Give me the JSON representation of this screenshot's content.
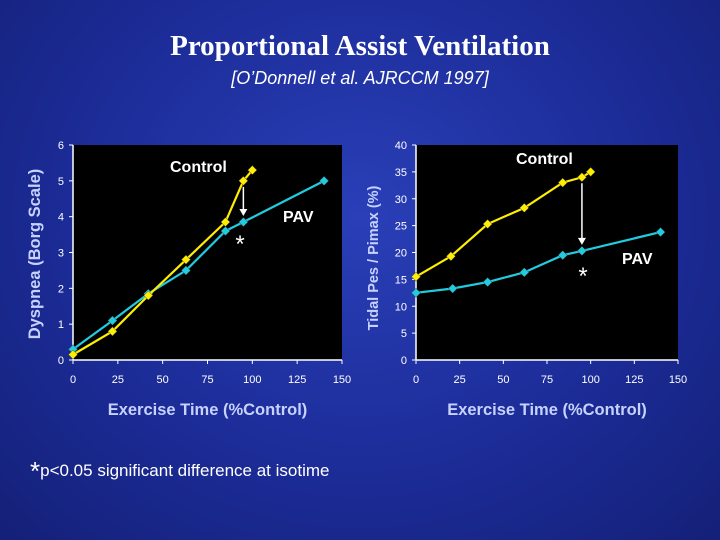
{
  "slide": {
    "title": "Proportional Assist Ventilation",
    "subtitle": "[O’Donnell et al.  AJRCCM 1997]",
    "footnote_symbol": "*",
    "footnote_text": "p<0.05 significant difference at isotime"
  },
  "colors": {
    "control": "#ffee00",
    "pav": "#22cce0",
    "plot_bg": "#000000",
    "text": "#ffffff"
  },
  "chart_data": [
    {
      "type": "line",
      "xlabel": "Exercise Time (%Control)",
      "ylabel": "Dyspnea (Borg Scale)",
      "xlim": [
        0,
        150
      ],
      "ylim": [
        0,
        6
      ],
      "xticks": [
        0,
        25,
        50,
        75,
        100,
        125,
        150
      ],
      "yticks": [
        0,
        1,
        2,
        3,
        4,
        5,
        6
      ],
      "grid": false,
      "series": [
        {
          "name": "Control",
          "color_key": "control",
          "points": [
            [
              0,
              0.15
            ],
            [
              22,
              0.8
            ],
            [
              42,
              1.8
            ],
            [
              63,
              2.8
            ],
            [
              85,
              3.85
            ],
            [
              95,
              5.0
            ],
            [
              100,
              5.3
            ]
          ]
        },
        {
          "name": "PAV",
          "color_key": "pav",
          "points": [
            [
              0,
              0.3
            ],
            [
              22,
              1.1
            ],
            [
              42,
              1.85
            ],
            [
              63,
              2.5
            ],
            [
              85,
              3.6
            ],
            [
              95,
              3.85
            ],
            [
              140,
              5.0
            ]
          ]
        }
      ],
      "annotations": {
        "control_label": "Control",
        "pav_label": "PAV",
        "significance": "*",
        "arrow": {
          "x": 95,
          "from": 5.0,
          "to": 3.85
        }
      }
    },
    {
      "type": "line",
      "xlabel": "Exercise Time (%Control)",
      "ylabel": "Tidal Pes / Pimax (%)",
      "xlim": [
        0,
        150
      ],
      "ylim": [
        0,
        40
      ],
      "xticks": [
        0,
        25,
        50,
        75,
        100,
        125,
        150
      ],
      "yticks": [
        0,
        5,
        10,
        15,
        20,
        25,
        30,
        35,
        40
      ],
      "grid": false,
      "series": [
        {
          "name": "Control",
          "color_key": "control",
          "points": [
            [
              0,
              15.5
            ],
            [
              20,
              19.3
            ],
            [
              41,
              25.3
            ],
            [
              62,
              28.3
            ],
            [
              84,
              33.0
            ],
            [
              95,
              34.0
            ],
            [
              100,
              35.0
            ]
          ]
        },
        {
          "name": "PAV",
          "color_key": "pav",
          "points": [
            [
              0,
              12.5
            ],
            [
              21,
              13.3
            ],
            [
              41,
              14.5
            ],
            [
              62,
              16.3
            ],
            [
              84,
              19.5
            ],
            [
              95,
              20.3
            ],
            [
              140,
              23.8
            ]
          ]
        }
      ],
      "annotations": {
        "control_label": "Control",
        "pav_label": "PAV",
        "significance": "*",
        "arrow": {
          "x": 95,
          "from": 34.0,
          "to": 20.3
        }
      }
    }
  ]
}
